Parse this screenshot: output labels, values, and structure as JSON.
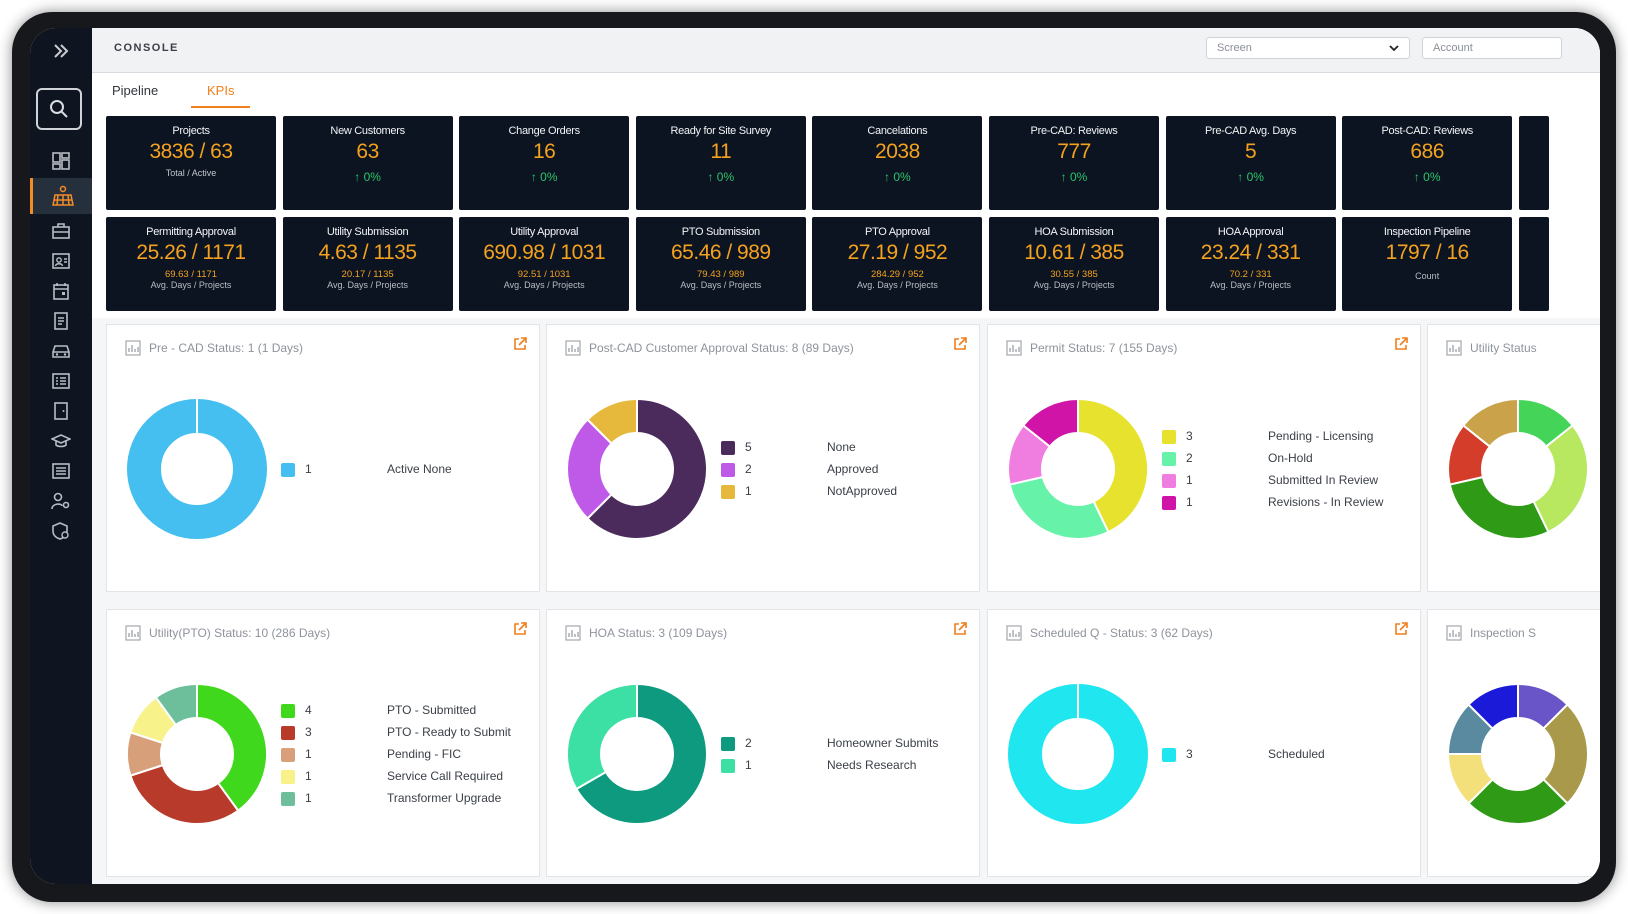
{
  "app": {
    "title": "CONSOLE"
  },
  "header": {
    "screen_placeholder": "Screen",
    "account_placeholder": "Account"
  },
  "tabs": [
    {
      "label": "Pipeline"
    },
    {
      "label": "KPIs"
    }
  ],
  "kpi_row1": [
    {
      "title": "Projects",
      "value": "3836 / 63",
      "sub": "Total / Active"
    },
    {
      "title": "New Customers",
      "value": "63",
      "change": "↑ 0%"
    },
    {
      "title": "Change Orders",
      "value": "16",
      "change": "↑ 0%"
    },
    {
      "title": "Ready for Site Survey",
      "value": "11",
      "change": "↑ 0%"
    },
    {
      "title": "Cancelations",
      "value": "2038",
      "change": "↑ 0%"
    },
    {
      "title": "Pre-CAD: Reviews",
      "value": "777",
      "change": "↑ 0%"
    },
    {
      "title": "Pre-CAD Avg. Days",
      "value": "5",
      "change": "↑ 0%"
    },
    {
      "title": "Post-CAD: Reviews",
      "value": "686",
      "change": "↑ 0%"
    }
  ],
  "kpi_row2": [
    {
      "title": "Permitting Approval",
      "value": "25.26 / 1171",
      "sub1": "69.63 / 1171",
      "sub2": "Avg. Days / Projects"
    },
    {
      "title": "Utility Submission",
      "value": "4.63 / 1135",
      "sub1": "20.17 / 1135",
      "sub2": "Avg. Days / Projects"
    },
    {
      "title": "Utility Approval",
      "value": "690.98 / 1031",
      "sub1": "92.51 / 1031",
      "sub2": "Avg. Days / Projects"
    },
    {
      "title": "PTO Submission",
      "value": "65.46 / 989",
      "sub1": "79.43 / 989",
      "sub2": "Avg. Days / Projects"
    },
    {
      "title": "PTO Approval",
      "value": "27.19 / 952",
      "sub1": "284.29 / 952",
      "sub2": "Avg. Days / Projects"
    },
    {
      "title": "HOA Submission",
      "value": "10.61 / 385",
      "sub1": "30.55 / 385",
      "sub2": "Avg. Days / Projects"
    },
    {
      "title": "HOA Approval",
      "value": "23.24 / 331",
      "sub1": "70.2 / 331",
      "sub2": "Avg. Days / Projects"
    },
    {
      "title": "Inspection Pipeline",
      "value": "1797 / 16",
      "sub2": "Count"
    }
  ],
  "panels": [
    {
      "title": "Pre - CAD Status: 1 (1 Days)",
      "slices": [
        {
          "count": "1",
          "label": "Active None",
          "value": 1,
          "color": "#45bff0"
        }
      ]
    },
    {
      "title": "Post-CAD Customer Approval Status: 8 (89 Days)",
      "slices": [
        {
          "count": "5",
          "label": "None",
          "value": 5,
          "color": "#4b2a5c"
        },
        {
          "count": "2",
          "label": "Approved",
          "value": 2,
          "color": "#bf5ae8"
        },
        {
          "count": "1",
          "label": "NotApproved",
          "value": 1,
          "color": "#e6b93c"
        }
      ]
    },
    {
      "title": "Permit Status: 7 (155 Days)",
      "slices": [
        {
          "count": "3",
          "label": "Pending - Licensing",
          "value": 3,
          "color": "#e6e22e"
        },
        {
          "count": "2",
          "label": "On-Hold",
          "value": 2,
          "color": "#66f2a8"
        },
        {
          "count": "1",
          "label": "Submitted In Review",
          "value": 1,
          "color": "#f07ee0"
        },
        {
          "count": "1",
          "label": "Revisions - In Review",
          "value": 1,
          "color": "#d014a8"
        }
      ]
    },
    {
      "title": "Utility Status",
      "slices": [
        {
          "value": 1,
          "color": "#43d458"
        },
        {
          "value": 2,
          "color": "#b7e860"
        },
        {
          "value": 2,
          "color": "#2f9a16"
        },
        {
          "value": 1,
          "color": "#d43d2a"
        },
        {
          "value": 1,
          "color": "#c9a24a"
        }
      ]
    },
    {
      "title": "Utility(PTO) Status: 10 (286 Days)",
      "slices": [
        {
          "count": "4",
          "label": "PTO - Submitted",
          "value": 4,
          "color": "#40d81c"
        },
        {
          "count": "3",
          "label": "PTO - Ready to Submit",
          "value": 3,
          "color": "#b83a2a"
        },
        {
          "count": "1",
          "label": "Pending - FIC",
          "value": 1,
          "color": "#d8a07a"
        },
        {
          "count": "1",
          "label": "Service Call Required",
          "value": 1,
          "color": "#f7f38a"
        },
        {
          "count": "1",
          "label": "Transformer Upgrade",
          "value": 1,
          "color": "#6cbf9a"
        }
      ]
    },
    {
      "title": "HOA Status: 3 (109 Days)",
      "slices": [
        {
          "count": "2",
          "label": "Homeowner Submits",
          "value": 2,
          "color": "#0e9a7e"
        },
        {
          "count": "1",
          "label": "Needs Research",
          "value": 1,
          "color": "#3cdfa4"
        }
      ]
    },
    {
      "title": "Scheduled Q - Status: 3 (62 Days)",
      "slices": [
        {
          "count": "3",
          "label": "Scheduled",
          "value": 3,
          "color": "#20e6f0"
        }
      ]
    },
    {
      "title": "Inspection S",
      "slices": [
        {
          "value": 1,
          "color": "#6a55c8"
        },
        {
          "value": 2,
          "color": "#a89a4a"
        },
        {
          "value": 2,
          "color": "#2f9a16"
        },
        {
          "value": 1,
          "color": "#f3e07a"
        },
        {
          "value": 1,
          "color": "#5a8aa0"
        },
        {
          "value": 1,
          "color": "#1a1ad8"
        }
      ]
    }
  ]
}
